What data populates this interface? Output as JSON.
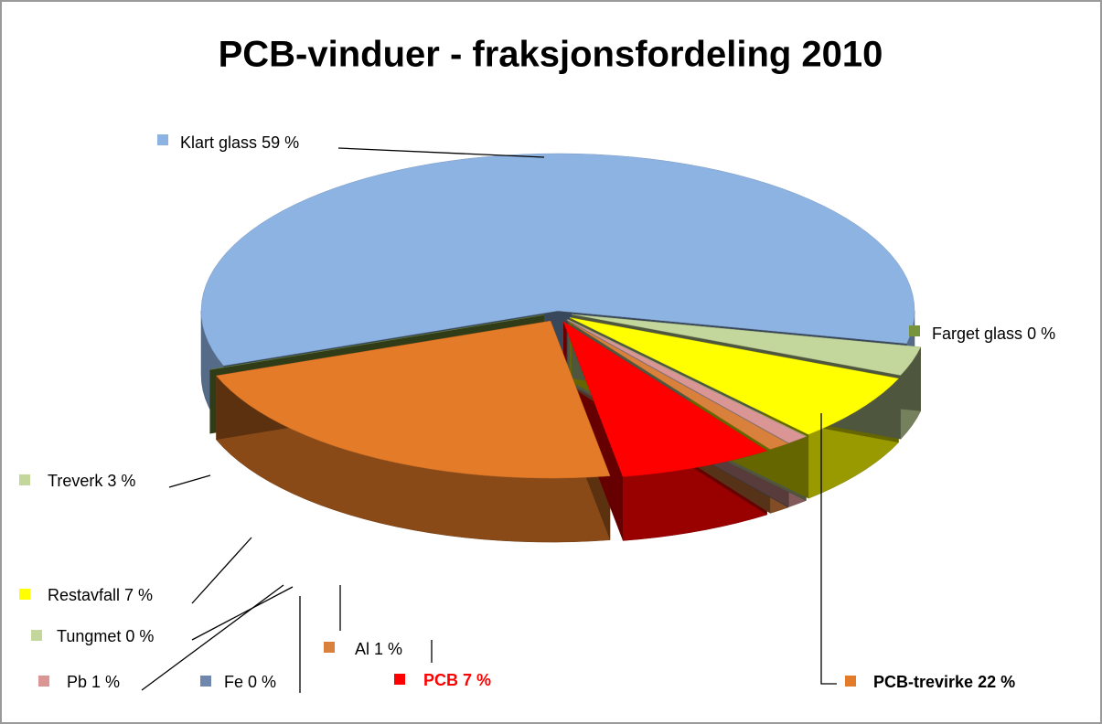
{
  "chart_data": {
    "type": "pie",
    "title": "PCB-vinduer - fraksjonsfordeling 2010",
    "categories": [
      "Klart glass",
      "Farget glass",
      "PCB-trevirke",
      "PCB",
      "Al",
      "Fe",
      "Pb",
      "Tungmet",
      "Restavfall",
      "Treverk"
    ],
    "values": [
      59,
      0,
      22,
      7,
      1,
      0,
      1,
      0,
      7,
      3
    ],
    "value_labels": [
      "59 %",
      "0 %",
      "22 %",
      "7 %",
      "1 %",
      "0 %",
      "1 %",
      "0 %",
      "7 %",
      "3 %"
    ],
    "colors": [
      "#8db3e2",
      "#77933c",
      "#e47b28",
      "#ff0000",
      "#d8803c",
      "#6f87ad",
      "#d99694",
      "#c3d69b",
      "#ffff00",
      "#c3d69b"
    ]
  }
}
